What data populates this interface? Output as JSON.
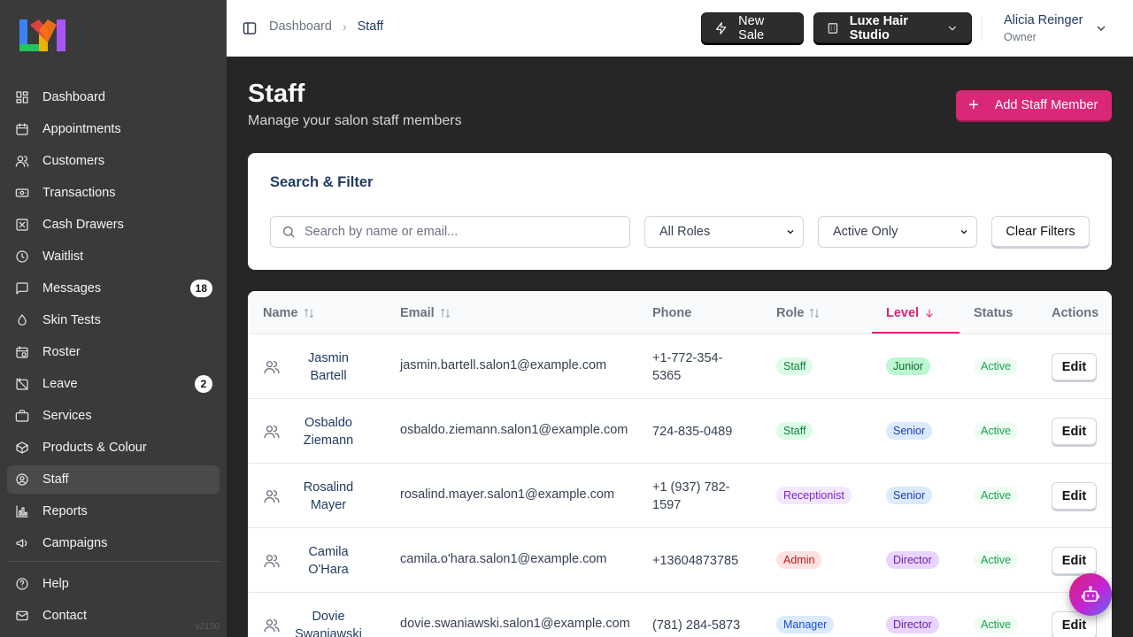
{
  "app": {
    "version": "v2150",
    "colors": {
      "accent": "#db2777",
      "sidebar_bg": "#3a3a3a",
      "page_bg": "#262626"
    }
  },
  "sidebar": {
    "items": [
      {
        "label": "Dashboard",
        "icon": "dashboard-icon"
      },
      {
        "label": "Appointments",
        "icon": "calendar-icon"
      },
      {
        "label": "Customers",
        "icon": "users-icon"
      },
      {
        "label": "Transactions",
        "icon": "banknote-icon"
      },
      {
        "label": "Cash Drawers",
        "icon": "cash-drawer-icon"
      },
      {
        "label": "Waitlist",
        "icon": "clock-icon"
      },
      {
        "label": "Messages",
        "icon": "message-icon",
        "badge": "18"
      },
      {
        "label": "Skin Tests",
        "icon": "droplet-icon"
      },
      {
        "label": "Roster",
        "icon": "calendar-clock-icon"
      },
      {
        "label": "Leave",
        "icon": "calendar-off-icon",
        "badge": "2"
      },
      {
        "label": "Services",
        "icon": "briefcase-icon"
      },
      {
        "label": "Products & Colour",
        "icon": "package-icon"
      },
      {
        "label": "Staff",
        "icon": "user-circle-icon",
        "active": true
      },
      {
        "label": "Reports",
        "icon": "bar-chart-icon"
      },
      {
        "label": "Campaigns",
        "icon": "megaphone-icon"
      }
    ],
    "bottom": [
      {
        "label": "Help",
        "icon": "help-icon"
      },
      {
        "label": "Contact",
        "icon": "mail-icon"
      }
    ]
  },
  "header": {
    "breadcrumb": {
      "parent": "Dashboard",
      "current": "Staff"
    },
    "new_sale_label": "New Sale",
    "studio_label": "Luxe Hair Studio",
    "user": {
      "name": "Alicia Reinger",
      "role": "Owner"
    }
  },
  "page": {
    "title": "Staff",
    "subtitle": "Manage your salon staff members",
    "add_button_label": "Add Staff Member"
  },
  "filters": {
    "title": "Search & Filter",
    "search_placeholder": "Search by name or email...",
    "role_select": "All Roles",
    "status_select": "Active Only",
    "clear_label": "Clear Filters"
  },
  "table": {
    "columns": [
      "Name",
      "Email",
      "Phone",
      "Role",
      "Level",
      "Status",
      "Actions"
    ],
    "edit_label": "Edit",
    "rows": [
      {
        "name": "Jasmin Bartell",
        "email": "jasmin.bartell.salon1@example.com",
        "phone": "+1-772-354-5365",
        "role": "Staff",
        "level": "Junior",
        "status": "Active"
      },
      {
        "name": "Osbaldo Ziemann",
        "email": "osbaldo.ziemann.salon1@example.com",
        "phone": "724-835-0489",
        "role": "Staff",
        "level": "Senior",
        "status": "Active"
      },
      {
        "name": "Rosalind Mayer",
        "email": "rosalind.mayer.salon1@example.com",
        "phone": "+1 (937) 782-1597",
        "role": "Receptionist",
        "level": "Senior",
        "status": "Active"
      },
      {
        "name": "Camila O'Hara",
        "email": "camila.o'hara.salon1@example.com",
        "phone": "+13604873785",
        "role": "Admin",
        "level": "Director",
        "status": "Active"
      },
      {
        "name": "Dovie Swaniawski",
        "email": "dovie.swaniawski.salon1@example.com",
        "phone": "(781) 284-5873",
        "role": "Manager",
        "level": "Director",
        "status": "Active"
      }
    ]
  },
  "pill_colors": {
    "Staff": {
      "bg": "#dcfce7",
      "fg": "#15803d"
    },
    "Receptionist": {
      "bg": "#f3e8ff",
      "fg": "#7e22ce"
    },
    "Admin": {
      "bg": "#fee2e2",
      "fg": "#b91c1c"
    },
    "Manager": {
      "bg": "#dbeafe",
      "fg": "#1d4ed8"
    },
    "Junior": {
      "bg": "#bbf7d0",
      "fg": "#166534"
    },
    "Senior": {
      "bg": "#dbeafe",
      "fg": "#1e40af"
    },
    "Director": {
      "bg": "#e9d5ff",
      "fg": "#6b21a8"
    },
    "Active": {
      "bg": "#f0fdf4",
      "fg": "#16a34a"
    }
  }
}
